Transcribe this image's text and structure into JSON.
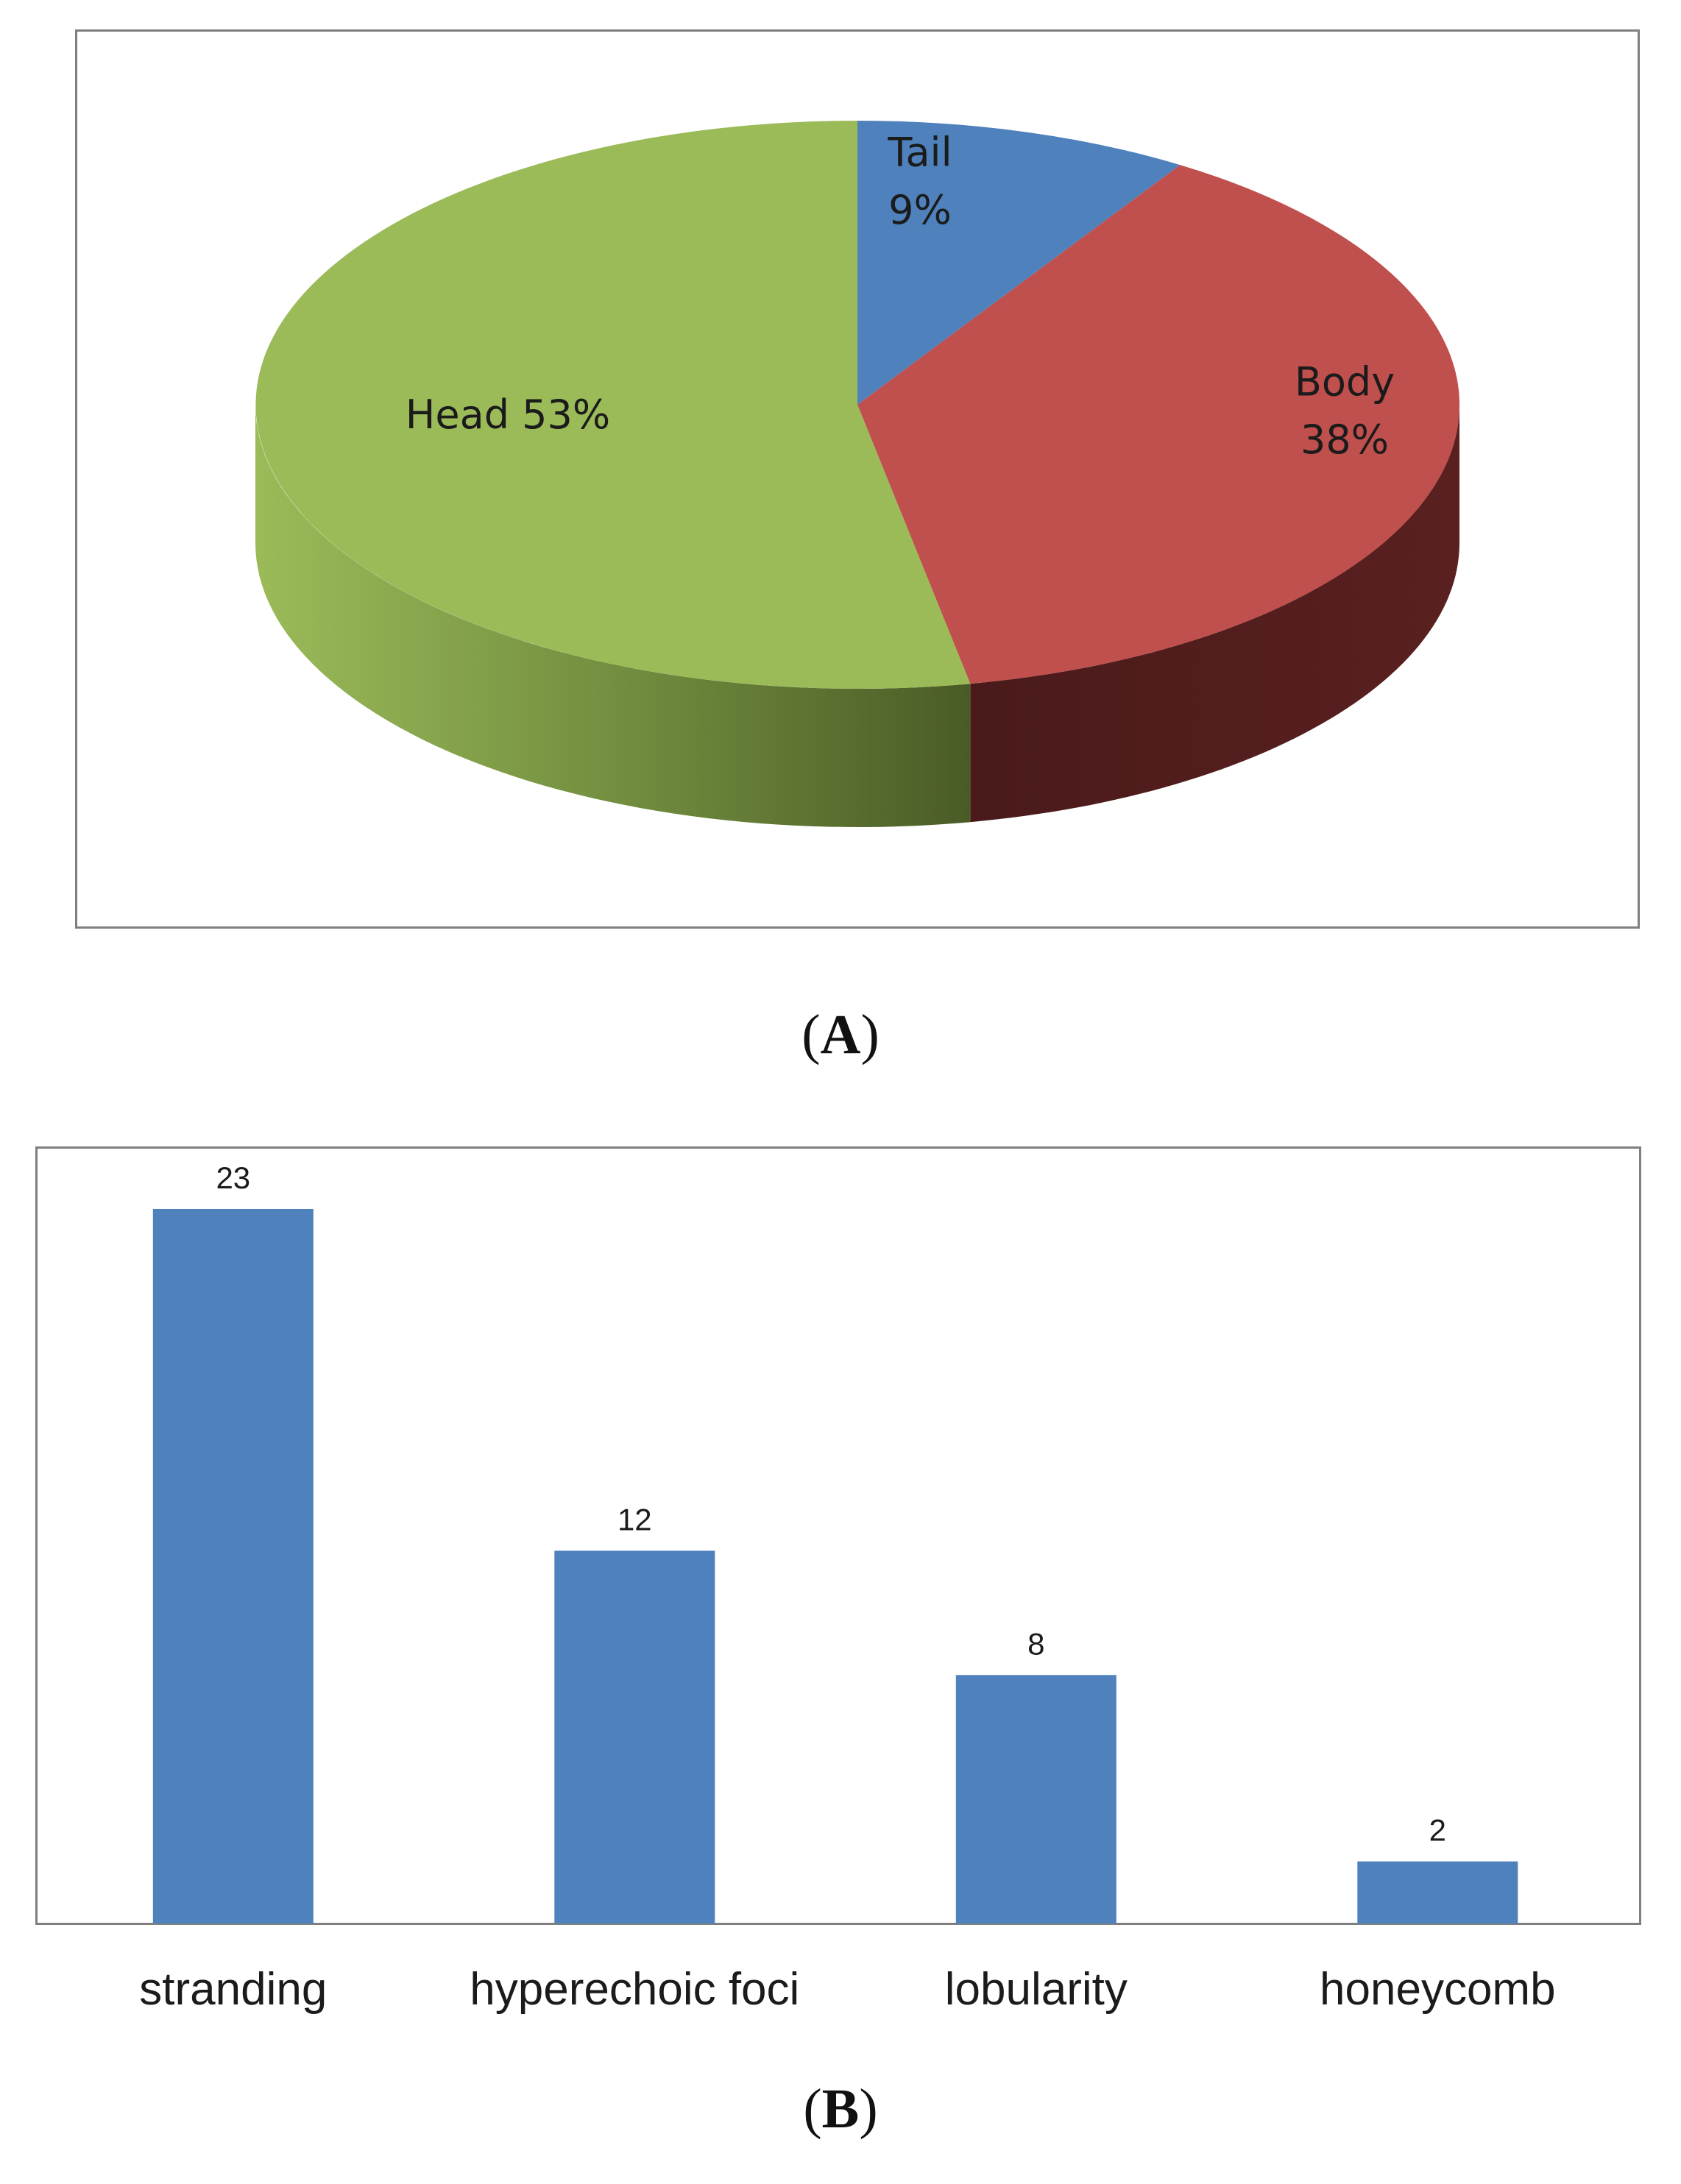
{
  "panels": {
    "a": {
      "open": "(",
      "letter": "A",
      "close": ")"
    },
    "b": {
      "open": "(",
      "letter": "B",
      "close": ")"
    }
  },
  "chart_data": [
    {
      "type": "pie",
      "style": "3d",
      "slices": [
        {
          "label": "Tail",
          "value": 9,
          "value_label": "9%",
          "color": "#4f81bd",
          "side_color": "#2c4a6e"
        },
        {
          "label": "Body",
          "value": 38,
          "value_label": "38%",
          "color": "#c0504d",
          "side_color": "#521d1d"
        },
        {
          "label": "Head",
          "value": 53,
          "value_label": "53%",
          "color": "#9bbb59",
          "side_color": "#5e7433"
        }
      ]
    },
    {
      "type": "bar",
      "categories": [
        "stranding",
        "hyperechoic foci",
        "lobularity",
        "honeycomb"
      ],
      "values": [
        23,
        12,
        8,
        2
      ],
      "data_labels": [
        "23",
        "12",
        "8",
        "2"
      ],
      "color": "#4f81bd",
      "ylim": [
        0,
        23
      ],
      "grid": false
    }
  ]
}
